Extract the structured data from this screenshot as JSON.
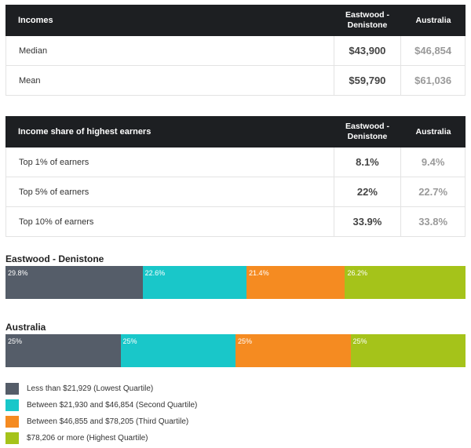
{
  "incomes_table": {
    "header": {
      "label": "Incomes",
      "col_local": "Eastwood - Denistone",
      "col_national": "Australia"
    },
    "rows": [
      {
        "label": "Median",
        "local": "$43,900",
        "national": "$46,854"
      },
      {
        "label": "Mean",
        "local": "$59,790",
        "national": "$61,036"
      }
    ]
  },
  "share_table": {
    "header": {
      "label": "Income share of highest earners",
      "col_local": "Eastwood - Denistone",
      "col_national": "Australia"
    },
    "rows": [
      {
        "label": "Top 1% of earners",
        "local": "8.1%",
        "national": "9.4%"
      },
      {
        "label": "Top 5% of earners",
        "local": "22%",
        "national": "22.7%"
      },
      {
        "label": "Top 10% of earners",
        "local": "33.9%",
        "national": "33.8%"
      }
    ]
  },
  "chart_data": {
    "type": "bar",
    "orientation": "horizontal-stacked-100",
    "categories": [
      "Eastwood - Denistone",
      "Australia"
    ],
    "series": [
      {
        "name": "Less than $21,929 (Lowest Quartile)",
        "color": "#555d69",
        "values": [
          29.8,
          25
        ],
        "labels": [
          "29.8%",
          "25%"
        ]
      },
      {
        "name": "Between $21,930 and $46,854 (Second Quartile)",
        "color": "#19c7c9",
        "values": [
          22.6,
          25
        ],
        "labels": [
          "22.6%",
          "25%"
        ]
      },
      {
        "name": "Between $46,855 and $78,205 (Third Quartile)",
        "color": "#f58b21",
        "values": [
          21.4,
          25
        ],
        "labels": [
          "21.4%",
          "25%"
        ]
      },
      {
        "name": "$78,206 or more (Highest Quartile)",
        "color": "#a5c31a",
        "values": [
          26.2,
          25
        ],
        "labels": [
          "26.2%",
          "25%"
        ]
      }
    ],
    "xlim": [
      0,
      100
    ]
  }
}
